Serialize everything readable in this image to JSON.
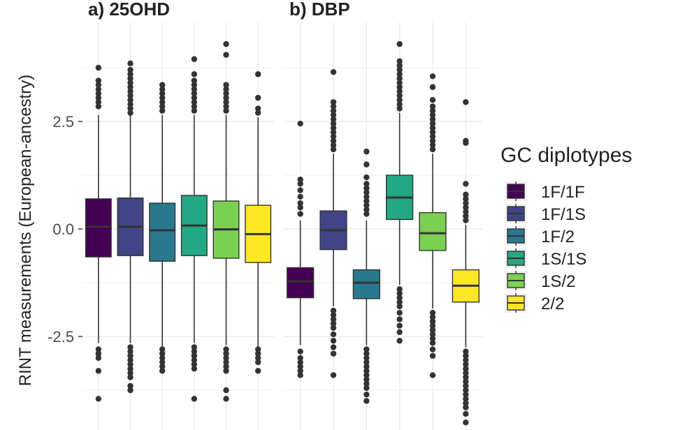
{
  "chart_data": {
    "type": "boxplot",
    "ylabel": "RINT measurements (European-ancestry)",
    "y_ticks": [
      {
        "value": 2.5,
        "label": "2.5"
      },
      {
        "value": 0.0,
        "label": "0.0"
      },
      {
        "value": -2.5,
        "label": "-2.5"
      }
    ],
    "ylim": [
      -4.5,
      4.5
    ],
    "grid": true,
    "legend": {
      "title": "GC diplotypes",
      "position": "right",
      "entries": [
        {
          "label": "1F/1F",
          "color": "#440154"
        },
        {
          "label": "1F/1S",
          "color": "#414487"
        },
        {
          "label": "1F/2",
          "color": "#2a788e"
        },
        {
          "label": "1S/1S",
          "color": "#22a884"
        },
        {
          "label": "1S/2",
          "color": "#7ad151"
        },
        {
          "label": "2/2",
          "color": "#fde725"
        }
      ]
    },
    "facets": [
      {
        "title": "a) 25OHD",
        "boxes": [
          {
            "group": "1F/1F",
            "q1": -0.65,
            "median": 0.05,
            "q3": 0.7,
            "whisker_low": -2.65,
            "whisker_high": 2.65,
            "outliers_high": [
              2.85,
              2.95,
              3.05,
              3.15,
              3.25,
              3.35,
              3.45,
              3.75
            ],
            "outliers_low": [
              -2.8,
              -2.9,
              -3.0,
              -3.3,
              -3.95
            ]
          },
          {
            "group": "1F/1S",
            "q1": -0.62,
            "median": 0.05,
            "q3": 0.72,
            "whisker_low": -2.65,
            "whisker_high": 2.65,
            "outliers_high": [
              2.7,
              2.8,
              2.9,
              3.0,
              3.1,
              3.2,
              3.3,
              3.4,
              3.5,
              3.6,
              3.7,
              3.85
            ],
            "outliers_low": [
              -2.75,
              -2.85,
              -2.95,
              -3.05,
              -3.15,
              -3.25,
              -3.35,
              -3.45,
              -3.65,
              -3.75
            ]
          },
          {
            "group": "1F/2",
            "q1": -0.75,
            "median": -0.03,
            "q3": 0.6,
            "whisker_low": -2.75,
            "whisker_high": 2.65,
            "outliers_high": [
              2.75,
              2.85,
              2.95,
              3.05,
              3.15,
              3.25,
              3.35
            ],
            "outliers_low": [
              -2.8,
              -2.9,
              -3.0,
              -3.1,
              -3.2,
              -3.3
            ]
          },
          {
            "group": "1S/1S",
            "q1": -0.62,
            "median": 0.08,
            "q3": 0.78,
            "whisker_low": -2.65,
            "whisker_high": 2.65,
            "outliers_high": [
              2.75,
              2.85,
              2.95,
              3.05,
              3.15,
              3.25,
              3.35,
              3.45,
              3.6,
              3.95
            ],
            "outliers_low": [
              -2.75,
              -2.85,
              -2.95,
              -3.05,
              -3.15,
              -3.25,
              -3.95
            ]
          },
          {
            "group": "1S/2",
            "q1": -0.68,
            "median": -0.01,
            "q3": 0.65,
            "whisker_low": -2.7,
            "whisker_high": 2.65,
            "outliers_high": [
              2.75,
              2.85,
              2.95,
              3.05,
              3.15,
              3.25,
              3.35,
              4.05,
              4.3
            ],
            "outliers_low": [
              -2.8,
              -2.9,
              -3.0,
              -3.1,
              -3.2,
              -3.3,
              -3.75,
              -3.95
            ]
          },
          {
            "group": "2/2",
            "q1": -0.78,
            "median": -0.12,
            "q3": 0.55,
            "whisker_low": -2.75,
            "whisker_high": 2.6,
            "outliers_high": [
              2.7,
              2.8,
              3.05,
              3.6
            ],
            "outliers_low": [
              -2.8,
              -2.9,
              -3.0,
              -3.1,
              -3.3
            ]
          }
        ]
      },
      {
        "title": "b) DBP",
        "boxes": [
          {
            "group": "1F/1F",
            "q1": -1.6,
            "median": -1.22,
            "q3": -0.9,
            "whisker_low": -2.7,
            "whisker_high": 0.2,
            "outliers_high": [
              0.35,
              0.5,
              0.6,
              0.75,
              0.9,
              1.05,
              1.15,
              2.45
            ],
            "outliers_low": [
              -2.85,
              -3.0,
              -3.1,
              -3.2,
              -3.3,
              -3.4
            ]
          },
          {
            "group": "1F/1S",
            "q1": -0.48,
            "median": -0.03,
            "q3": 0.42,
            "whisker_low": -1.8,
            "whisker_high": 1.75,
            "outliers_high": [
              1.85,
              1.95,
              2.05,
              2.15,
              2.25,
              2.35,
              2.45,
              2.55,
              2.65,
              2.75,
              2.85,
              2.95,
              3.65
            ],
            "outliers_low": [
              -1.9,
              -2.0,
              -2.1,
              -2.2,
              -2.3,
              -2.45,
              -2.6,
              -2.75,
              -2.9,
              -3.4
            ]
          },
          {
            "group": "1F/2",
            "q1": -1.62,
            "median": -1.25,
            "q3": -0.95,
            "whisker_low": -2.7,
            "whisker_high": 0.2,
            "outliers_high": [
              0.35,
              0.45,
              0.55,
              0.65,
              0.75,
              0.85,
              0.95,
              1.05,
              1.2,
              1.5,
              1.8
            ],
            "outliers_low": [
              -2.8,
              -2.9,
              -3.0,
              -3.1,
              -3.2,
              -3.3,
              -3.4,
              -3.5,
              -3.6,
              -3.7,
              -3.85,
              -4.0
            ]
          },
          {
            "group": "1S/1S",
            "q1": 0.22,
            "median": 0.73,
            "q3": 1.25,
            "whisker_low": -1.3,
            "whisker_high": 2.7,
            "outliers_high": [
              2.8,
              2.9,
              3.0,
              3.1,
              3.2,
              3.3,
              3.4,
              3.5,
              3.6,
              3.7,
              3.8,
              3.9,
              4.3
            ],
            "outliers_low": [
              -1.4,
              -1.5,
              -1.6,
              -1.7,
              -1.8,
              -1.95,
              -2.1,
              -2.25,
              -2.4,
              -2.6
            ]
          },
          {
            "group": "1S/2",
            "q1": -0.5,
            "median": -0.1,
            "q3": 0.38,
            "whisker_low": -1.85,
            "whisker_high": 1.75,
            "outliers_high": [
              1.85,
              1.95,
              2.05,
              2.15,
              2.25,
              2.35,
              2.45,
              2.55,
              2.65,
              2.75,
              2.85,
              3.0,
              3.3,
              3.55
            ],
            "outliers_low": [
              -1.95,
              -2.05,
              -2.15,
              -2.25,
              -2.35,
              -2.45,
              -2.55,
              -2.65,
              -2.8,
              -2.95,
              -3.4
            ]
          },
          {
            "group": "2/2",
            "q1": -1.7,
            "median": -1.32,
            "q3": -0.95,
            "whisker_low": -2.75,
            "whisker_high": 0.1,
            "outliers_high": [
              0.2,
              0.3,
              0.4,
              0.5,
              0.6,
              0.7,
              0.8,
              1.05,
              2.0,
              2.05,
              2.95
            ],
            "outliers_low": [
              -2.85,
              -2.95,
              -3.05,
              -3.15,
              -3.25,
              -3.35,
              -3.45,
              -3.55,
              -3.65,
              -3.75,
              -3.85,
              -3.95,
              -4.05,
              -4.15,
              -4.3,
              -4.5
            ]
          }
        ]
      }
    ]
  }
}
